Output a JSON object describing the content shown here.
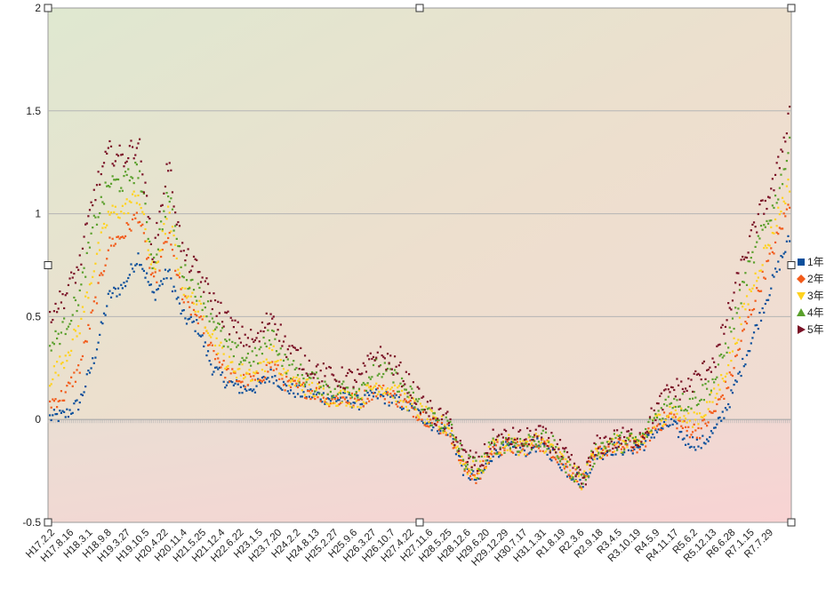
{
  "chart_data": {
    "type": "scatter",
    "title": "",
    "xlabel": "",
    "ylabel": "",
    "ylim": [
      -0.5,
      2
    ],
    "yticks": [
      "2",
      "1.5",
      "1",
      "0.5",
      "0",
      "-0.5"
    ],
    "ytick_values": [
      2,
      1.5,
      1,
      0.5,
      0,
      -0.5
    ],
    "x_tick_labels": [
      "H17.2.2",
      "H17.8.16",
      "H18.3.1",
      "H18.9.8",
      "H19.3.27",
      "H19.10.5",
      "H20.4.22",
      "H20.11.4",
      "H21.5.25",
      "H21.12.4",
      "H22.6.22",
      "H23.1.5",
      "H23.7.20",
      "H24.2.2",
      "H24.8.13",
      "H25.2.27",
      "H25.9.6",
      "H26.3.27",
      "H26.10.7",
      "H27.4.22",
      "H27.11.6",
      "H28.5.25",
      "H28.12.6",
      "H29.6.20",
      "H29.12.29",
      "H30.7.17",
      "H31.1.31",
      "R1.8.19",
      "R2.3.6",
      "R2.9.18",
      "R3.4.5",
      "R3.10.19",
      "R4.5.9",
      "R4.11.17",
      "R5.6.2",
      "R5.12.13",
      "R6.6.28",
      "R7.1.15",
      "R7.7.29"
    ],
    "grid": true,
    "legend_position": "right",
    "series": [
      {
        "name": "1年",
        "color": "#0b4f9b",
        "marker": "square",
        "values": [
          0.01,
          0.02,
          0.08,
          0.3,
          0.6,
          0.65,
          0.8,
          0.6,
          0.72,
          0.5,
          0.45,
          0.25,
          0.18,
          0.15,
          0.16,
          0.22,
          0.15,
          0.13,
          0.12,
          0.1,
          0.1,
          0.08,
          0.12,
          0.1,
          0.07,
          0.02,
          -0.03,
          -0.05,
          -0.25,
          -0.3,
          -0.15,
          -0.14,
          -0.15,
          -0.12,
          -0.17,
          -0.25,
          -0.3,
          -0.17,
          -0.14,
          -0.14,
          -0.13,
          -0.05,
          -0.02,
          -0.1,
          -0.12,
          -0.05,
          0.1,
          0.3,
          0.5,
          0.7,
          0.88
        ]
      },
      {
        "name": "2年",
        "color": "#f25b1a",
        "marker": "diamond",
        "values": [
          0.08,
          0.12,
          0.25,
          0.55,
          0.85,
          0.9,
          1.0,
          0.65,
          0.9,
          0.58,
          0.5,
          0.35,
          0.22,
          0.19,
          0.19,
          0.27,
          0.17,
          0.15,
          0.13,
          0.1,
          0.1,
          0.09,
          0.15,
          0.12,
          0.08,
          0.03,
          -0.02,
          -0.05,
          -0.24,
          -0.28,
          -0.14,
          -0.13,
          -0.14,
          -0.11,
          -0.15,
          -0.24,
          -0.3,
          -0.16,
          -0.13,
          -0.13,
          -0.12,
          -0.03,
          0.02,
          -0.05,
          -0.05,
          0.05,
          0.2,
          0.45,
          0.65,
          0.85,
          1.05
        ]
      },
      {
        "name": "3年",
        "color": "#ffd21e",
        "marker": "triangle-down",
        "values": [
          0.2,
          0.3,
          0.45,
          0.75,
          1.0,
          1.02,
          1.1,
          0.7,
          1.0,
          0.65,
          0.55,
          0.42,
          0.27,
          0.23,
          0.22,
          0.33,
          0.2,
          0.17,
          0.14,
          0.11,
          0.11,
          0.1,
          0.17,
          0.15,
          0.1,
          0.04,
          -0.01,
          -0.04,
          -0.22,
          -0.26,
          -0.13,
          -0.12,
          -0.13,
          -0.1,
          -0.14,
          -0.23,
          -0.3,
          -0.15,
          -0.12,
          -0.12,
          -0.11,
          -0.01,
          0.05,
          0.0,
          0.02,
          0.12,
          0.3,
          0.55,
          0.75,
          0.95,
          1.15
        ]
      },
      {
        "name": "4年",
        "color": "#5aa02c",
        "marker": "triangle-up",
        "values": [
          0.35,
          0.45,
          0.6,
          0.95,
          1.15,
          1.15,
          1.22,
          0.75,
          1.1,
          0.72,
          0.62,
          0.5,
          0.35,
          0.3,
          0.3,
          0.42,
          0.26,
          0.22,
          0.18,
          0.15,
          0.15,
          0.15,
          0.25,
          0.22,
          0.15,
          0.06,
          0.0,
          -0.03,
          -0.2,
          -0.24,
          -0.12,
          -0.11,
          -0.12,
          -0.09,
          -0.13,
          -0.22,
          -0.3,
          -0.14,
          -0.11,
          -0.11,
          -0.1,
          0.02,
          0.1,
          0.08,
          0.12,
          0.2,
          0.42,
          0.68,
          0.88,
          1.05,
          1.32
        ]
      },
      {
        "name": "5年",
        "color": "#7a1126",
        "marker": "triangle-right",
        "values": [
          0.52,
          0.6,
          0.75,
          1.1,
          1.3,
          1.27,
          1.35,
          0.8,
          1.25,
          0.8,
          0.72,
          0.58,
          0.48,
          0.4,
          0.38,
          0.52,
          0.35,
          0.29,
          0.24,
          0.2,
          0.2,
          0.2,
          0.32,
          0.28,
          0.2,
          0.09,
          0.02,
          -0.02,
          -0.18,
          -0.22,
          -0.1,
          -0.09,
          -0.1,
          -0.08,
          -0.11,
          -0.2,
          -0.3,
          -0.13,
          -0.1,
          -0.09,
          -0.08,
          0.05,
          0.15,
          0.15,
          0.22,
          0.3,
          0.55,
          0.8,
          1.0,
          1.15,
          1.5
        ]
      }
    ]
  }
}
